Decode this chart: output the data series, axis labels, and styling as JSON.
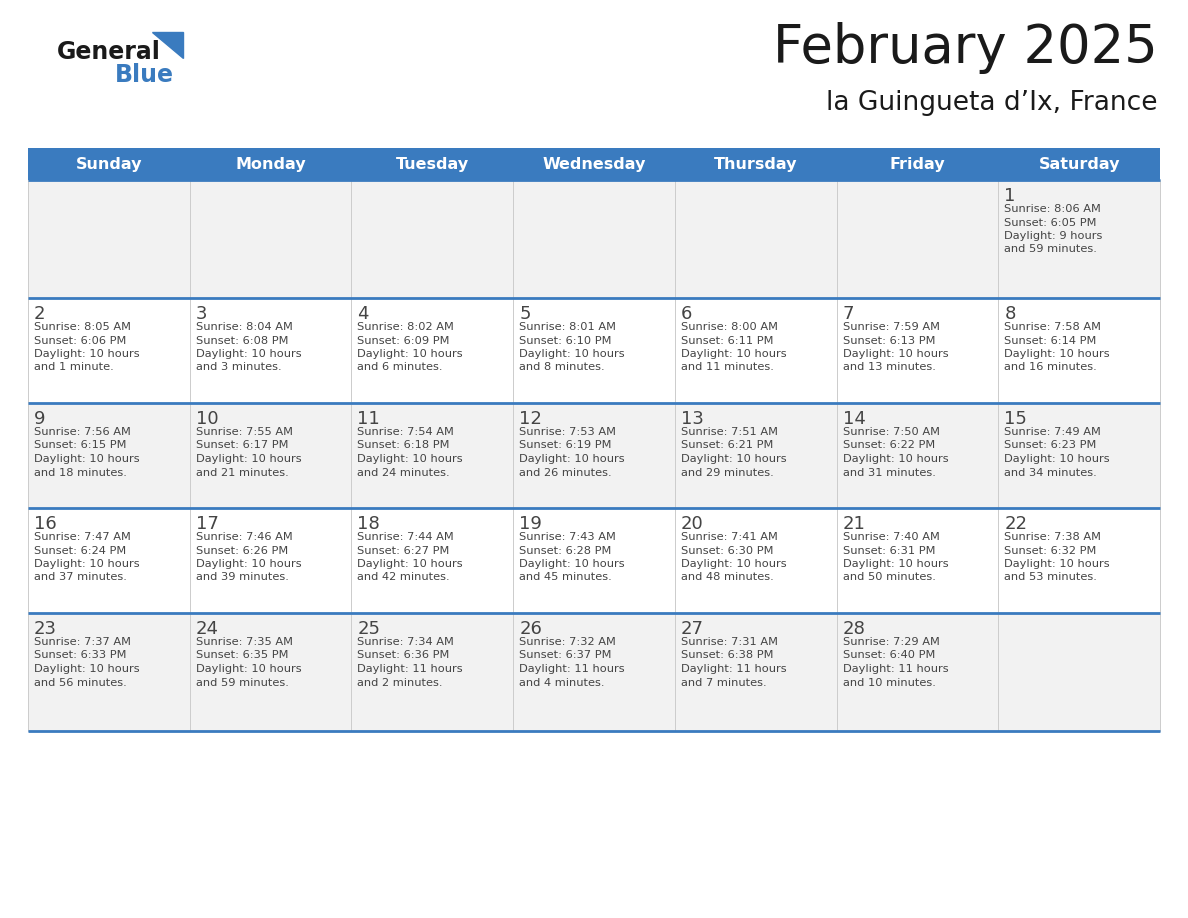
{
  "title": "February 2025",
  "subtitle": "la Guingueta d’Ix, France",
  "days_of_week": [
    "Sunday",
    "Monday",
    "Tuesday",
    "Wednesday",
    "Thursday",
    "Friday",
    "Saturday"
  ],
  "header_bg": "#3a7bbf",
  "header_text": "#ffffff",
  "divider_color": "#3a7bbf",
  "day_num_color": "#444444",
  "text_color": "#444444",
  "cell_bg_odd": "#f2f2f2",
  "cell_bg_even": "#ffffff",
  "border_color": "#cccccc",
  "fig_width": 11.88,
  "fig_height": 9.18,
  "dpi": 100,
  "calendar_data": [
    [
      null,
      null,
      null,
      null,
      null,
      null,
      {
        "day": "1",
        "sunrise": "Sunrise: 8:06 AM",
        "sunset": "Sunset: 6:05 PM",
        "daylight": "Daylight: 9 hours\nand 59 minutes."
      }
    ],
    [
      {
        "day": "2",
        "sunrise": "Sunrise: 8:05 AM",
        "sunset": "Sunset: 6:06 PM",
        "daylight": "Daylight: 10 hours\nand 1 minute."
      },
      {
        "day": "3",
        "sunrise": "Sunrise: 8:04 AM",
        "sunset": "Sunset: 6:08 PM",
        "daylight": "Daylight: 10 hours\nand 3 minutes."
      },
      {
        "day": "4",
        "sunrise": "Sunrise: 8:02 AM",
        "sunset": "Sunset: 6:09 PM",
        "daylight": "Daylight: 10 hours\nand 6 minutes."
      },
      {
        "day": "5",
        "sunrise": "Sunrise: 8:01 AM",
        "sunset": "Sunset: 6:10 PM",
        "daylight": "Daylight: 10 hours\nand 8 minutes."
      },
      {
        "day": "6",
        "sunrise": "Sunrise: 8:00 AM",
        "sunset": "Sunset: 6:11 PM",
        "daylight": "Daylight: 10 hours\nand 11 minutes."
      },
      {
        "day": "7",
        "sunrise": "Sunrise: 7:59 AM",
        "sunset": "Sunset: 6:13 PM",
        "daylight": "Daylight: 10 hours\nand 13 minutes."
      },
      {
        "day": "8",
        "sunrise": "Sunrise: 7:58 AM",
        "sunset": "Sunset: 6:14 PM",
        "daylight": "Daylight: 10 hours\nand 16 minutes."
      }
    ],
    [
      {
        "day": "9",
        "sunrise": "Sunrise: 7:56 AM",
        "sunset": "Sunset: 6:15 PM",
        "daylight": "Daylight: 10 hours\nand 18 minutes."
      },
      {
        "day": "10",
        "sunrise": "Sunrise: 7:55 AM",
        "sunset": "Sunset: 6:17 PM",
        "daylight": "Daylight: 10 hours\nand 21 minutes."
      },
      {
        "day": "11",
        "sunrise": "Sunrise: 7:54 AM",
        "sunset": "Sunset: 6:18 PM",
        "daylight": "Daylight: 10 hours\nand 24 minutes."
      },
      {
        "day": "12",
        "sunrise": "Sunrise: 7:53 AM",
        "sunset": "Sunset: 6:19 PM",
        "daylight": "Daylight: 10 hours\nand 26 minutes."
      },
      {
        "day": "13",
        "sunrise": "Sunrise: 7:51 AM",
        "sunset": "Sunset: 6:21 PM",
        "daylight": "Daylight: 10 hours\nand 29 minutes."
      },
      {
        "day": "14",
        "sunrise": "Sunrise: 7:50 AM",
        "sunset": "Sunset: 6:22 PM",
        "daylight": "Daylight: 10 hours\nand 31 minutes."
      },
      {
        "day": "15",
        "sunrise": "Sunrise: 7:49 AM",
        "sunset": "Sunset: 6:23 PM",
        "daylight": "Daylight: 10 hours\nand 34 minutes."
      }
    ],
    [
      {
        "day": "16",
        "sunrise": "Sunrise: 7:47 AM",
        "sunset": "Sunset: 6:24 PM",
        "daylight": "Daylight: 10 hours\nand 37 minutes."
      },
      {
        "day": "17",
        "sunrise": "Sunrise: 7:46 AM",
        "sunset": "Sunset: 6:26 PM",
        "daylight": "Daylight: 10 hours\nand 39 minutes."
      },
      {
        "day": "18",
        "sunrise": "Sunrise: 7:44 AM",
        "sunset": "Sunset: 6:27 PM",
        "daylight": "Daylight: 10 hours\nand 42 minutes."
      },
      {
        "day": "19",
        "sunrise": "Sunrise: 7:43 AM",
        "sunset": "Sunset: 6:28 PM",
        "daylight": "Daylight: 10 hours\nand 45 minutes."
      },
      {
        "day": "20",
        "sunrise": "Sunrise: 7:41 AM",
        "sunset": "Sunset: 6:30 PM",
        "daylight": "Daylight: 10 hours\nand 48 minutes."
      },
      {
        "day": "21",
        "sunrise": "Sunrise: 7:40 AM",
        "sunset": "Sunset: 6:31 PM",
        "daylight": "Daylight: 10 hours\nand 50 minutes."
      },
      {
        "day": "22",
        "sunrise": "Sunrise: 7:38 AM",
        "sunset": "Sunset: 6:32 PM",
        "daylight": "Daylight: 10 hours\nand 53 minutes."
      }
    ],
    [
      {
        "day": "23",
        "sunrise": "Sunrise: 7:37 AM",
        "sunset": "Sunset: 6:33 PM",
        "daylight": "Daylight: 10 hours\nand 56 minutes."
      },
      {
        "day": "24",
        "sunrise": "Sunrise: 7:35 AM",
        "sunset": "Sunset: 6:35 PM",
        "daylight": "Daylight: 10 hours\nand 59 minutes."
      },
      {
        "day": "25",
        "sunrise": "Sunrise: 7:34 AM",
        "sunset": "Sunset: 6:36 PM",
        "daylight": "Daylight: 11 hours\nand 2 minutes."
      },
      {
        "day": "26",
        "sunrise": "Sunrise: 7:32 AM",
        "sunset": "Sunset: 6:37 PM",
        "daylight": "Daylight: 11 hours\nand 4 minutes."
      },
      {
        "day": "27",
        "sunrise": "Sunrise: 7:31 AM",
        "sunset": "Sunset: 6:38 PM",
        "daylight": "Daylight: 11 hours\nand 7 minutes."
      },
      {
        "day": "28",
        "sunrise": "Sunrise: 7:29 AM",
        "sunset": "Sunset: 6:40 PM",
        "daylight": "Daylight: 11 hours\nand 10 minutes."
      },
      null
    ]
  ]
}
